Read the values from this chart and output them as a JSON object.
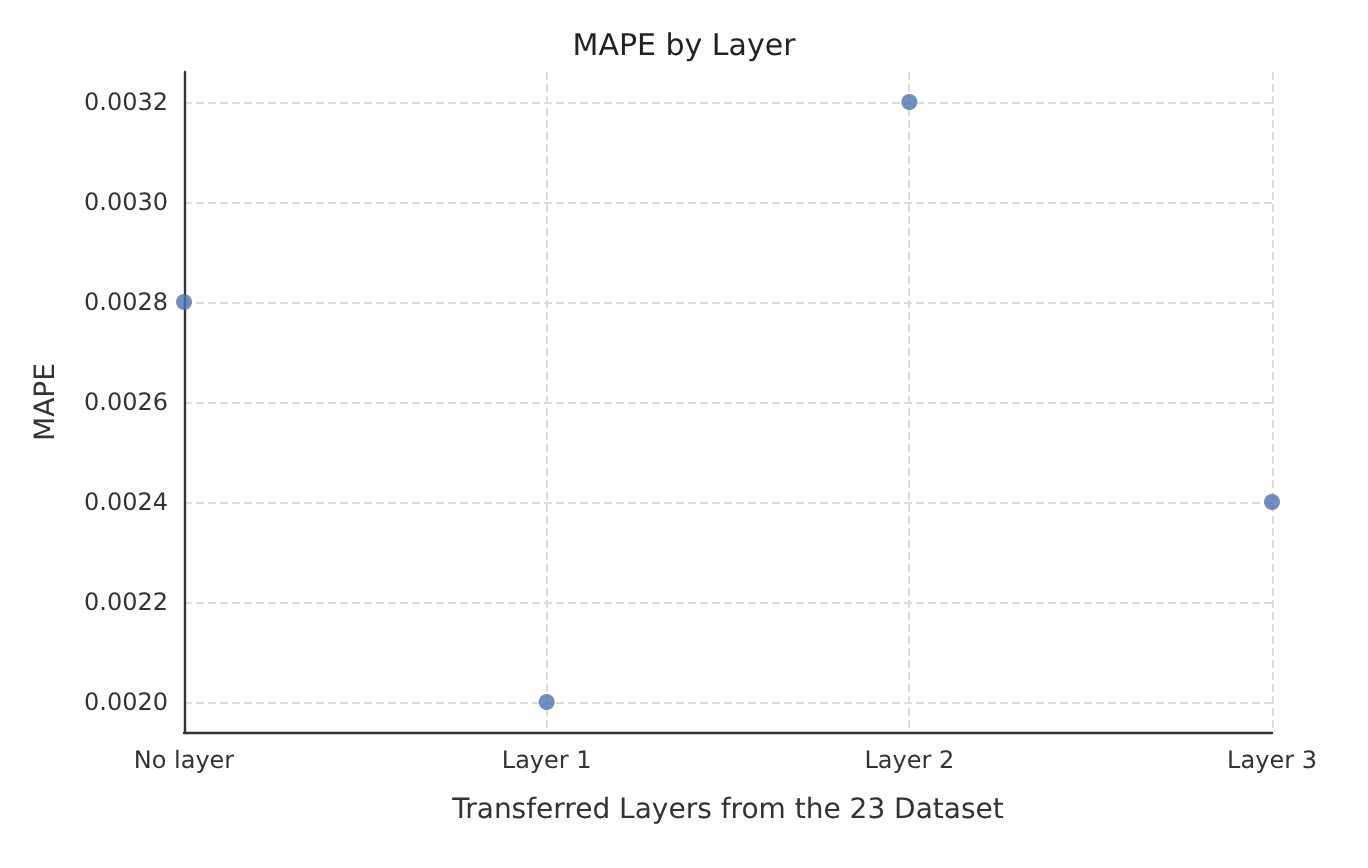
{
  "chart_data": {
    "type": "scatter",
    "title": "MAPE by Layer",
    "xlabel": "Transferred Layers from the 23 Dataset",
    "ylabel": "MAPE",
    "categories": [
      "No layer",
      "Layer 1",
      "Layer 2",
      "Layer 3"
    ],
    "series": [
      {
        "color": "#4c72b0",
        "values": [
          0.0028,
          0.002,
          0.0032,
          0.0024
        ]
      }
    ],
    "ylim": [
      0.00194,
      0.00326
    ],
    "yticks": [
      {
        "value": 0.002,
        "label": "0.0020"
      },
      0.0022,
      0.0024,
      0.0026,
      0.0028,
      {
        "value": 0.003,
        "label": "0.0030"
      },
      0.0032
    ],
    "grid": true,
    "marker": "circle"
  }
}
